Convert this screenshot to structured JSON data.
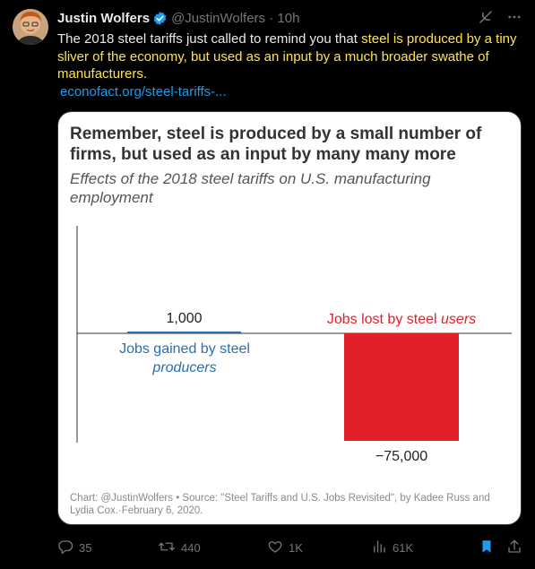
{
  "tweet": {
    "author_name": "Justin Wolfers",
    "handle_time": "@JustinWolfers · 10h",
    "text_plain": "The 2018 steel tariffs just called to remind you that ",
    "text_highlight": "steel is produced by a tiny sliver of the economy, but used as an input by a much broader swathe of manufacturers.",
    "link": "econofact.org/steel-tariffs-..."
  },
  "card": {
    "title": "Remember, steel is produced by a small number of firms, but used as an input by many many more",
    "subtitle": "Effects of the 2018 steel tariffs on U.S. manufacturing employment",
    "source": "Chart: @JustinWolfers • Source: \"Steel Tariffs and U.S. Jobs Revisited\", by Kadee Russ and Lydia Cox.·February 6, 2020."
  },
  "chart_data": {
    "type": "bar",
    "categories": [
      "Jobs gained by steel producers",
      "Jobs lost by steel users"
    ],
    "category_lines": [
      [
        "Jobs gained by steel",
        "producers"
      ],
      [
        "Jobs lost by steel ",
        "users"
      ]
    ],
    "values": [
      1000,
      -75000
    ],
    "value_labels": [
      "1,000",
      "−75,000"
    ],
    "colors": [
      "#2a6fb0",
      "#e0202a"
    ],
    "ylim": [
      -75000,
      75000
    ]
  },
  "actions": {
    "replies": "35",
    "retweets": "440",
    "likes": "1K",
    "views": "61K"
  },
  "colors": {
    "background": "#000000",
    "accent": "#1d9bf0",
    "highlight": "#ffe34d",
    "bar_positive": "#2a6fb0",
    "bar_negative": "#e0202a"
  },
  "icons": [
    "verified-badge-icon",
    "grok-icon",
    "more-icon",
    "reply-icon",
    "retweet-icon",
    "like-icon",
    "views-icon",
    "bookmark-icon",
    "share-icon"
  ]
}
